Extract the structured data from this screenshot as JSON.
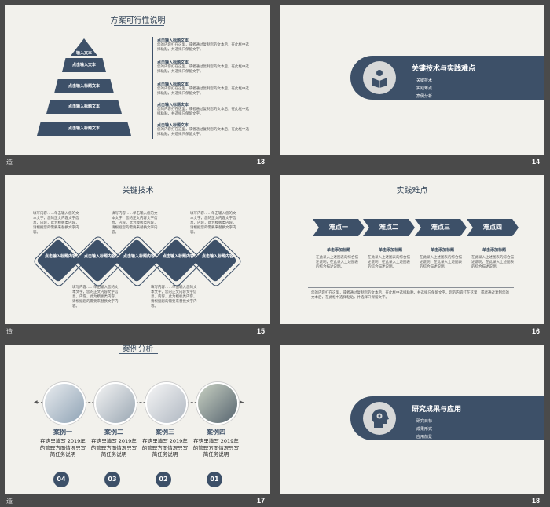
{
  "footer_left": "造",
  "slides": [
    {
      "num": "13",
      "title": "方案可行性说明",
      "pyramid": [
        "输入文本",
        "点击输入文本",
        "点击输入标题文本",
        "点击输入标题文本",
        "点击输入标题文本"
      ],
      "notes": [
        {
          "title": "点击输入标题文本",
          "body": "您的内容打在这里，或者通过复制您的文本后，在此框中选择粘贴，并选择只保留文字。"
        },
        {
          "title": "点击输入标题文本",
          "body": "您的内容打在这里，或者通过复制您的文本后，在此框中选择粘贴，并选择只保留文字。"
        },
        {
          "title": "点击输入标题文本",
          "body": "您的内容打在这里，或者通过复制您的文本后，在此框中选择粘贴，并选择只保留文字。"
        },
        {
          "title": "点击输入标题文本",
          "body": "您的内容打在这里，或者通过复制您的文本后，在此框中选择粘贴，并选择只保留文字。"
        },
        {
          "title": "点击输入标题文本",
          "body": "您的内容打在这里，或者通过复制您的文本后，在此框中选择粘贴，并选择只保留文字。"
        }
      ]
    },
    {
      "num": "14",
      "title": "关键技术与实践难点",
      "items": [
        "关键技术",
        "实践难点",
        "案例分析"
      ]
    },
    {
      "num": "15",
      "title": "关键技术",
      "diamond_label": "点击输入标题内容",
      "desc": "填写内容……单击输入您的文本文字，您的正文内容文字信息，内容，此为模板类内容，请根据您的需要来替换文字内容。"
    },
    {
      "num": "16",
      "title": "实践难点",
      "steps": [
        "难点一",
        "难点二",
        "难点三",
        "难点四"
      ],
      "sub_title": "单击添加标题",
      "sub_body": "在此录入上述图表的综合描述说明，在此录入上述图表的综合描述说明。",
      "bottom_note": "您的内容打在这里，或者通过复制您的文本后，在此框中选择粘贴，并选择只保留文字。您的内容打在这里，或者通过复制您的文本后，在此框中选择粘贴，并选择只保留文字。"
    },
    {
      "num": "17",
      "title": "案例分析",
      "cases": [
        {
          "name": "案例一",
          "text": "在这里填写 2019年的管理方面情况只写简任务说明",
          "badge": "04"
        },
        {
          "name": "案例二",
          "text": "在这里填写 2019年的管理方面情况只写简任务说明",
          "badge": "03"
        },
        {
          "name": "案例三",
          "text": "在这里填写 2019年的管理方面情况只写简任务说明",
          "badge": "02"
        },
        {
          "name": "案例四",
          "text": "在这里填写 2019年的管理方面情况只写简任务说明",
          "badge": "01"
        }
      ]
    },
    {
      "num": "18",
      "title": "研究成果与应用",
      "items": [
        "研究目标",
        "成果形式",
        "应用前景"
      ]
    }
  ]
}
